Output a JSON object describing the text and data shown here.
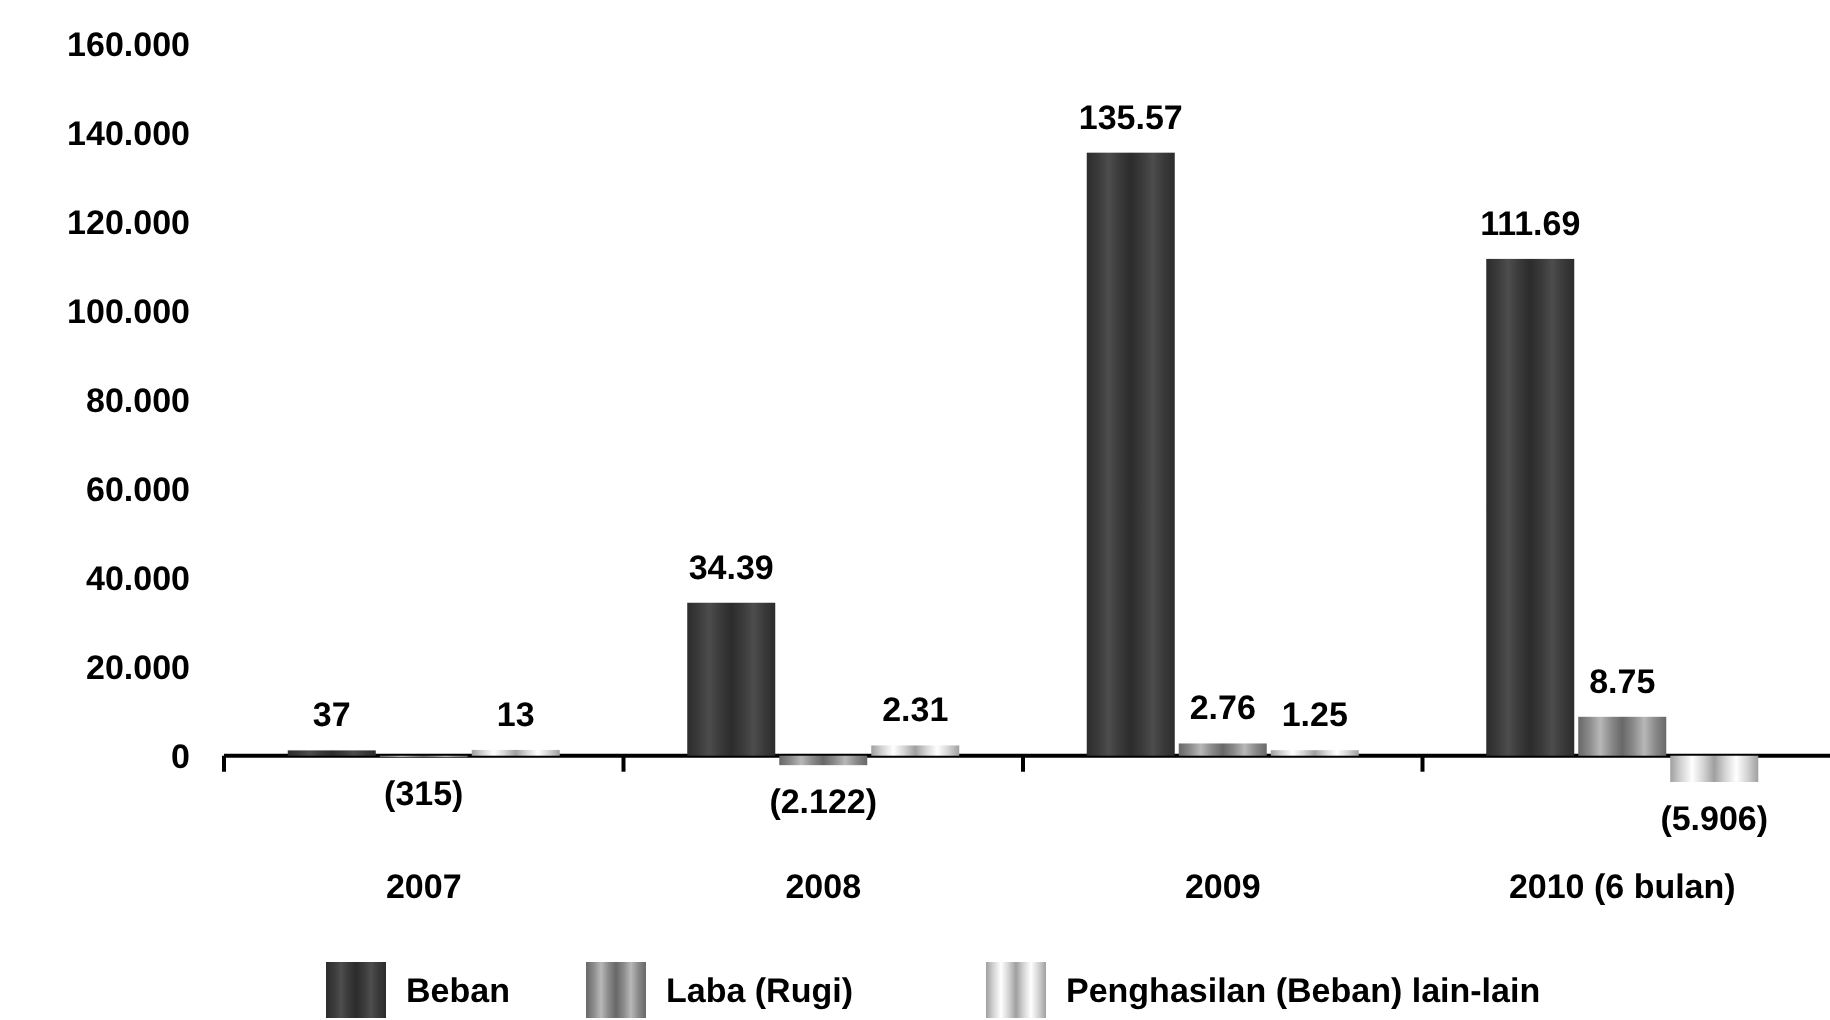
{
  "chart_data": {
    "type": "bar",
    "categories": [
      "2007",
      "2008",
      "2009",
      "2010 (6 bulan)"
    ],
    "series": [
      {
        "name": "Beban",
        "color": "#3a3a3a",
        "values": [
          1.2,
          34.39,
          135.57,
          111.69
        ],
        "value_labels": [
          null,
          "34.39",
          "135.57",
          "111.69"
        ]
      },
      {
        "name": "Laba (Rugi)",
        "color": "#8a8a8a",
        "values": [
          -0.315,
          -2.122,
          2.76,
          8.75
        ],
        "value_labels": [
          null,
          "(2.122)",
          "2.76",
          "8.75"
        ]
      },
      {
        "name": "Penghasilan (Beban) lain-lain",
        "color": "#d4d4d4",
        "values": [
          1.3,
          2.31,
          1.25,
          -5.906
        ],
        "value_labels": [
          null,
          "2.31",
          "1.25",
          "(5.906)"
        ]
      }
    ],
    "annotations": [
      {
        "text": "37",
        "x": "2007",
        "y": 1.2
      },
      {
        "text": "(315)",
        "x": "2007",
        "y": -0.315
      },
      {
        "text": "13",
        "x": "2007",
        "y": 1.3
      }
    ],
    "ylim": [
      -5.906,
      160
    ],
    "yticks": [
      {
        "value": 0,
        "label": "0"
      },
      {
        "value": 20,
        "label": "20.000"
      },
      {
        "value": 40,
        "label": "40.000"
      },
      {
        "value": 60,
        "label": "60.000"
      },
      {
        "value": 80,
        "label": "80.000"
      },
      {
        "value": 100,
        "label": "100.000"
      },
      {
        "value": 120,
        "label": "120.000"
      },
      {
        "value": 140,
        "label": "140.000"
      },
      {
        "value": 160,
        "label": "160.000"
      }
    ],
    "legend": "bottom"
  }
}
